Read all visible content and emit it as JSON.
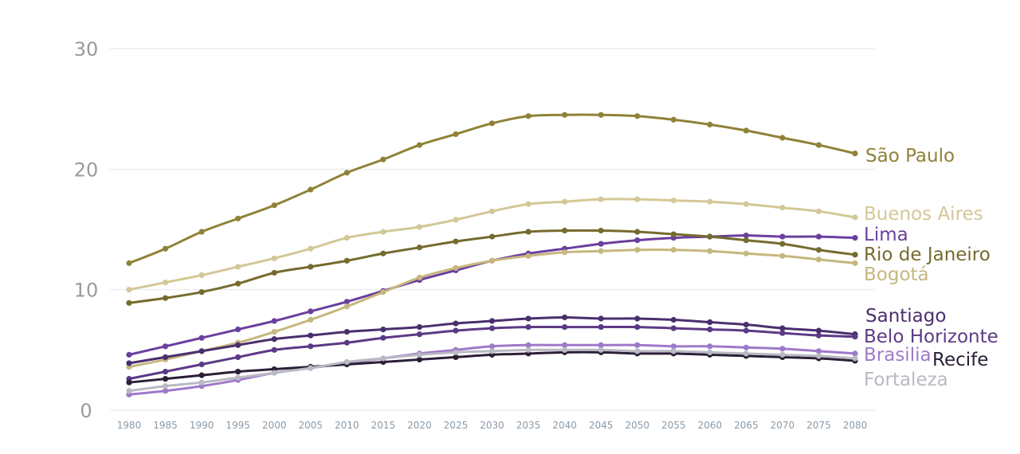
{
  "chart_data": {
    "type": "line",
    "x": [
      1980,
      1985,
      1990,
      1995,
      2000,
      2005,
      2010,
      2015,
      2020,
      2025,
      2030,
      2035,
      2040,
      2045,
      2050,
      2055,
      2060,
      2065,
      2070,
      2075,
      2080
    ],
    "ylim": [
      0,
      30
    ],
    "yticks": [
      0,
      10,
      20,
      30
    ],
    "grid": true,
    "legend": "direct labels at line ends",
    "series": [
      {
        "name": "São Paulo",
        "color": "#8f8238",
        "values": [
          12.2,
          13.4,
          14.8,
          15.9,
          17.0,
          18.3,
          19.7,
          20.8,
          22.0,
          22.9,
          23.8,
          24.4,
          24.5,
          24.5,
          24.4,
          24.1,
          23.7,
          23.2,
          22.6,
          22.0,
          21.3
        ]
      },
      {
        "name": "Buenos Aires",
        "color": "#d3c896",
        "values": [
          10.0,
          10.6,
          11.2,
          11.9,
          12.6,
          13.4,
          14.3,
          14.8,
          15.2,
          15.8,
          16.5,
          17.1,
          17.3,
          17.5,
          17.5,
          17.4,
          17.3,
          17.1,
          16.8,
          16.5,
          16.0
        ]
      },
      {
        "name": "Lima",
        "color": "#6a3f9e",
        "values": [
          4.6,
          5.3,
          6.0,
          6.7,
          7.4,
          8.2,
          9.0,
          9.9,
          10.8,
          11.6,
          12.4,
          13.0,
          13.4,
          13.8,
          14.1,
          14.3,
          14.4,
          14.5,
          14.4,
          14.4,
          14.3
        ]
      },
      {
        "name": "Rio de Janeiro",
        "color": "#756b2e",
        "values": [
          8.9,
          9.3,
          9.8,
          10.5,
          11.4,
          11.9,
          12.4,
          13.0,
          13.5,
          14.0,
          14.4,
          14.8,
          14.9,
          14.9,
          14.8,
          14.6,
          14.4,
          14.1,
          13.8,
          13.3,
          12.9
        ]
      },
      {
        "name": "Bogotá",
        "color": "#c6b77f",
        "values": [
          3.6,
          4.2,
          4.9,
          5.6,
          6.5,
          7.5,
          8.6,
          9.8,
          11.0,
          11.8,
          12.4,
          12.8,
          13.1,
          13.2,
          13.3,
          13.3,
          13.2,
          13.0,
          12.8,
          12.5,
          12.2
        ]
      },
      {
        "name": "Santiago",
        "color": "#4a2f6e",
        "values": [
          3.9,
          4.4,
          4.9,
          5.4,
          5.9,
          6.2,
          6.5,
          6.7,
          6.9,
          7.2,
          7.4,
          7.6,
          7.7,
          7.6,
          7.6,
          7.5,
          7.3,
          7.1,
          6.8,
          6.6,
          6.3
        ]
      },
      {
        "name": "Belo Horizonte",
        "color": "#5b3a85",
        "values": [
          2.6,
          3.2,
          3.8,
          4.4,
          5.0,
          5.3,
          5.6,
          6.0,
          6.3,
          6.6,
          6.8,
          6.9,
          6.9,
          6.9,
          6.9,
          6.8,
          6.7,
          6.6,
          6.4,
          6.2,
          6.1
        ]
      },
      {
        "name": "Brasilia",
        "color": "#9e79c9",
        "values": [
          1.3,
          1.6,
          2.0,
          2.5,
          3.1,
          3.5,
          3.9,
          4.3,
          4.7,
          5.0,
          5.3,
          5.4,
          5.4,
          5.4,
          5.4,
          5.3,
          5.3,
          5.2,
          5.1,
          4.9,
          4.7
        ]
      },
      {
        "name": "Recife",
        "color": "#2a1f36",
        "values": [
          2.3,
          2.6,
          2.9,
          3.2,
          3.4,
          3.6,
          3.8,
          4.0,
          4.2,
          4.4,
          4.6,
          4.7,
          4.8,
          4.8,
          4.7,
          4.7,
          4.6,
          4.5,
          4.4,
          4.3,
          4.1
        ]
      },
      {
        "name": "Fortaleza",
        "color": "#b9b9c4",
        "values": [
          1.6,
          2.0,
          2.3,
          2.7,
          3.1,
          3.5,
          4.0,
          4.3,
          4.6,
          4.8,
          4.9,
          5.0,
          5.0,
          5.0,
          4.9,
          4.9,
          4.8,
          4.7,
          4.6,
          4.5,
          4.3
        ]
      }
    ]
  }
}
